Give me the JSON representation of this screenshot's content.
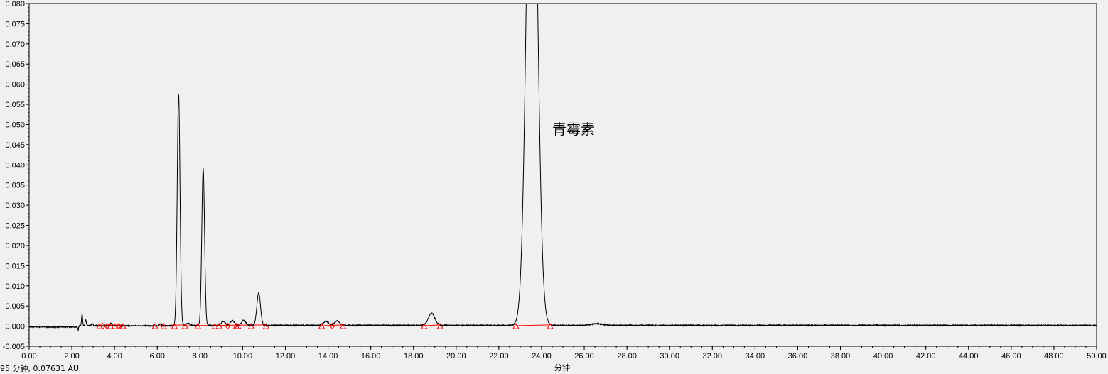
{
  "chart_data": {
    "type": "line",
    "title": "",
    "xlabel": "分钟",
    "ylabel": "",
    "xlim": [
      0,
      50
    ],
    "ylim": [
      -0.005,
      0.08
    ],
    "grid": false,
    "x_tick_labels": [
      "0.00",
      "2.00",
      "4.00",
      "6.00",
      "8.00",
      "10.00",
      "12.00",
      "14.00",
      "16.00",
      "18.00",
      "20.00",
      "22.00",
      "24.00",
      "26.00",
      "28.00",
      "30.00",
      "32.00",
      "34.00",
      "36.00",
      "38.00",
      "40.00",
      "42.00",
      "44.00",
      "46.00",
      "48.00",
      "50.00"
    ],
    "y_tick_labels": [
      "-0.005",
      "0.000",
      "0.005",
      "0.010",
      "0.015",
      "0.020",
      "0.025",
      "0.030",
      "0.035",
      "0.040",
      "0.045",
      "0.050",
      "0.055",
      "0.060",
      "0.065",
      "0.070",
      "0.075",
      "0.080"
    ],
    "trace_color": "#000000",
    "baseline_color": "#ff0000",
    "peaks": [
      {
        "rt": 2.48,
        "height": 0.003,
        "width": 0.025
      },
      {
        "rt": 2.65,
        "height": 0.0015,
        "width": 0.025
      },
      {
        "rt": 2.95,
        "height": 0.0005,
        "width": 0.04
      },
      {
        "rt": 3.85,
        "height": 0.0007,
        "width": 0.04
      },
      {
        "rt": 6.15,
        "height": 0.0004,
        "width": 0.06
      },
      {
        "rt": 7.0,
        "height": 0.0573,
        "width": 0.065
      },
      {
        "rt": 7.45,
        "height": 0.0005,
        "width": 0.08
      },
      {
        "rt": 8.15,
        "height": 0.039,
        "width": 0.065
      },
      {
        "rt": 9.1,
        "height": 0.001,
        "width": 0.09
      },
      {
        "rt": 9.52,
        "height": 0.0012,
        "width": 0.09
      },
      {
        "rt": 10.05,
        "height": 0.0013,
        "width": 0.09
      },
      {
        "rt": 10.75,
        "height": 0.008,
        "width": 0.085
      },
      {
        "rt": 13.9,
        "height": 0.001,
        "width": 0.12
      },
      {
        "rt": 14.42,
        "height": 0.0011,
        "width": 0.12
      },
      {
        "rt": 18.85,
        "height": 0.003,
        "width": 0.15
      },
      {
        "rt": 23.55,
        "height": 0.15,
        "width": 0.24
      },
      {
        "rt": 26.6,
        "height": 0.0004,
        "width": 0.25
      }
    ],
    "triangle_markers": [
      3.3,
      3.8,
      4.0,
      4.4,
      5.9,
      6.3,
      6.8,
      7.3,
      7.9,
      8.7,
      8.9,
      9.7,
      9.78,
      10.4,
      11.1,
      13.7,
      14.7,
      18.5,
      19.25,
      22.8,
      24.4
    ],
    "diamond_markers": [
      3.45,
      3.65,
      4.2,
      9.3,
      14.2
    ],
    "baseline_segments": [
      [
        3.3,
        4.4
      ],
      [
        5.9,
        7.3
      ],
      [
        7.3,
        11.1
      ],
      [
        13.7,
        14.7
      ],
      [
        18.5,
        19.25
      ],
      [
        22.8,
        24.4
      ]
    ],
    "annotations": [
      {
        "text": "青霉素",
        "x": 24.6,
        "y": 0.05
      }
    ]
  },
  "status_text": "95 分钟, 0.07631 AU"
}
